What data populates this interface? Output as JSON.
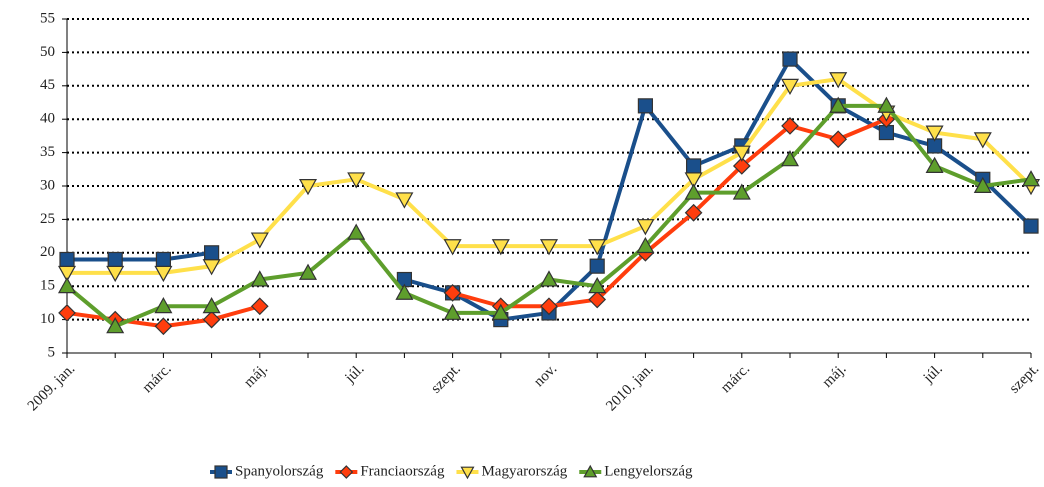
{
  "chart_data": {
    "type": "line",
    "categories": [
      "2009. jan.",
      null,
      "márc.",
      null,
      "máj.",
      null,
      "júl.",
      null,
      "szept.",
      null,
      "nov.",
      null,
      "2010. jan.",
      null,
      "márc.",
      null,
      "máj.",
      null,
      "júl.",
      null,
      "szept."
    ],
    "series": [
      {
        "name": "Spanyolország",
        "color": "#1a4f8b",
        "marker": "square",
        "values": [
          19,
          19,
          19,
          20,
          null,
          null,
          null,
          16,
          14,
          10,
          11,
          18,
          42,
          33,
          36,
          49,
          42,
          38,
          36,
          31,
          24
        ]
      },
      {
        "name": "Franciaország",
        "color": "#ff3d0d",
        "marker": "diamond",
        "values": [
          11,
          10,
          9,
          10,
          12,
          null,
          null,
          null,
          14,
          12,
          12,
          13,
          20,
          26,
          33,
          39,
          37,
          40,
          null,
          null,
          null
        ]
      },
      {
        "name": "Magyarország",
        "color": "#ffe04a",
        "marker": "triangle-down",
        "values": [
          17,
          17,
          17,
          18,
          22,
          30,
          31,
          28,
          21,
          21,
          21,
          21,
          24,
          31,
          35,
          45,
          46,
          41,
          38,
          37,
          30
        ]
      },
      {
        "name": "Lengyelország",
        "color": "#5e9e2c",
        "marker": "triangle-up",
        "values": [
          15,
          9,
          12,
          12,
          16,
          17,
          23,
          14,
          11,
          11,
          16,
          15,
          21,
          29,
          29,
          34,
          42,
          42,
          33,
          30,
          31
        ]
      }
    ],
    "ylim": [
      5,
      55
    ],
    "yticks": [
      5,
      10,
      15,
      20,
      25,
      30,
      35,
      40,
      45,
      50,
      55
    ],
    "grid": true,
    "legend": "bottom"
  }
}
